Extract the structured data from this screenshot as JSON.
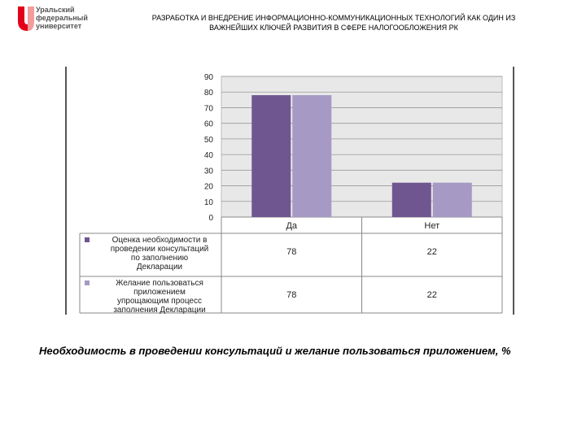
{
  "logo": {
    "lines": [
      "Уральский",
      "федеральный",
      "университет"
    ],
    "color": "#e2001a"
  },
  "header": {
    "line1": "РАЗРАБОТКА И ВНЕДРЕНИЕ ИНФОРМАЦИОННО-КОММУНИКАЦИОННЫХ ТЕХНОЛОГИЙ КАК ОДИН ИЗ",
    "line2": "ВАЖНЕЙШИХ КЛЮЧЕЙ РАЗВИТИЯ В СФЕРЕ НАЛОГООБЛОЖЕНИЯ РК"
  },
  "chart_data": {
    "type": "bar",
    "categories": [
      "Да",
      "Нет"
    ],
    "series": [
      {
        "name_lines": [
          "Оценка необходимости в",
          "проведении консультаций",
          "по заполнению",
          "Декларации"
        ],
        "values": [
          78,
          22
        ],
        "color": "#6f5691"
      },
      {
        "name_lines": [
          "Желание пользоваться",
          "приложением",
          "упрощающим процесс",
          "заполнения Декларации"
        ],
        "values": [
          78,
          22
        ],
        "color": "#a699c4"
      }
    ],
    "yticks": [
      "0",
      "10",
      "20",
      "30",
      "40",
      "50",
      "60",
      "70",
      "80",
      "90"
    ],
    "ylim": [
      0,
      90
    ],
    "grid": true,
    "legend": "data-table-below"
  },
  "caption": "Необходимость в проведении консультаций и желание пользоваться приложением, %"
}
